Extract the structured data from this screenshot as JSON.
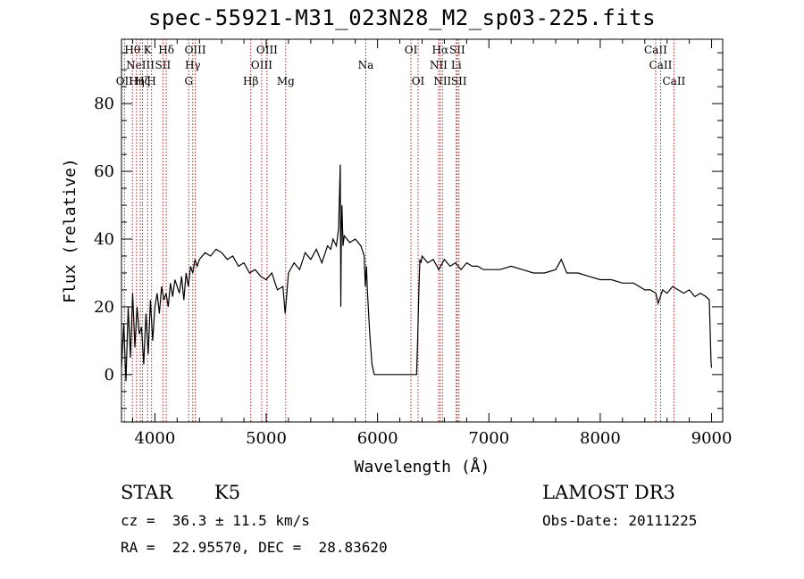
{
  "title": "spec-55921-M31_023N28_M2_sp03-225.fits",
  "info": {
    "class": "STAR",
    "subclass": "K5",
    "redshift_line": "cz =  36.3 ± 11.5 km/s",
    "coords": "RA =  22.95570, DEC =  28.83620",
    "survey": "LAMOST DR3",
    "obs_date": "Obs-Date: 20111225"
  },
  "colors": {
    "spectrum": "#000000",
    "line_marker": "#b22222",
    "axis": "#000000"
  },
  "chart_data": {
    "type": "line",
    "xlabel": "Wavelength (Å)",
    "ylabel": "Flux (relative)",
    "xlim": [
      3700,
      9100
    ],
    "ylim": [
      -14,
      99
    ],
    "xticks": [
      4000,
      5000,
      6000,
      7000,
      8000,
      9000
    ],
    "xtick_labels": [
      "4000",
      "5000",
      "6000",
      "7000",
      "8000",
      "9000"
    ],
    "yticks": [
      0,
      20,
      40,
      60,
      80
    ],
    "ytick_labels": [
      "0",
      "20",
      "40",
      "60",
      "80"
    ],
    "spectral_lines": [
      {
        "wave": 3727,
        "row": 2,
        "text": "OII"
      },
      {
        "wave": 3798,
        "row": 0,
        "text": "Hθ"
      },
      {
        "wave": 3835,
        "row": 2,
        "text": "Hη"
      },
      {
        "wave": 3869,
        "row": 1,
        "text": "NeIII"
      },
      {
        "wave": 3889,
        "row": 2,
        "text": "Hζ"
      },
      {
        "wave": 3934,
        "row": 0,
        "text": "K"
      },
      {
        "wave": 3970,
        "row": 2,
        "text": "H"
      },
      {
        "wave": 4072,
        "row": 1,
        "text": "SII"
      },
      {
        "wave": 4102,
        "row": 0,
        "text": "Hδ"
      },
      {
        "wave": 4304,
        "row": 2,
        "text": "G"
      },
      {
        "wave": 4340,
        "row": 1,
        "text": "Hγ"
      },
      {
        "wave": 4363,
        "row": 0,
        "text": "OIII"
      },
      {
        "wave": 4861,
        "row": 2,
        "text": "Hβ"
      },
      {
        "wave": 4959,
        "row": 1,
        "text": "OIII"
      },
      {
        "wave": 5007,
        "row": 0,
        "text": "OIII"
      },
      {
        "wave": 5175,
        "row": 2,
        "text": "Mg"
      },
      {
        "wave": 5894,
        "row": 1,
        "text": "Na"
      },
      {
        "wave": 6300,
        "row": 0,
        "text": "OI"
      },
      {
        "wave": 6364,
        "row": 2,
        "text": "OI"
      },
      {
        "wave": 6548,
        "row": 1,
        "text": "NII"
      },
      {
        "wave": 6563,
        "row": 0,
        "text": "Hα"
      },
      {
        "wave": 6583,
        "row": 2,
        "text": "NII"
      },
      {
        "wave": 6707,
        "row": 1,
        "text": "Li"
      },
      {
        "wave": 6716,
        "row": 0,
        "text": "SII"
      },
      {
        "wave": 6731,
        "row": 2,
        "text": "SII"
      },
      {
        "wave": 8498,
        "row": 0,
        "text": "CaII"
      },
      {
        "wave": 8542,
        "row": 1,
        "text": "CaII"
      },
      {
        "wave": 8662,
        "row": 2,
        "text": "CaII"
      }
    ],
    "series": [
      {
        "name": "flux",
        "x": [
          3700,
          3720,
          3740,
          3760,
          3780,
          3800,
          3820,
          3840,
          3860,
          3880,
          3900,
          3920,
          3940,
          3960,
          3980,
          4000,
          4020,
          4040,
          4060,
          4080,
          4100,
          4120,
          4140,
          4160,
          4180,
          4200,
          4220,
          4240,
          4260,
          4280,
          4300,
          4320,
          4340,
          4360,
          4380,
          4400,
          4450,
          4500,
          4550,
          4600,
          4650,
          4700,
          4750,
          4800,
          4850,
          4900,
          4950,
          5000,
          5050,
          5100,
          5150,
          5170,
          5180,
          5200,
          5250,
          5300,
          5350,
          5400,
          5450,
          5500,
          5550,
          5580,
          5600,
          5630,
          5650,
          5665,
          5670,
          5675,
          5680,
          5690,
          5700,
          5750,
          5800,
          5850,
          5880,
          5890,
          5900,
          5910,
          5930,
          5950,
          5970,
          5980,
          6000,
          6100,
          6200,
          6300,
          6350,
          6360,
          6370,
          6380,
          6390,
          6400,
          6450,
          6500,
          6550,
          6600,
          6650,
          6700,
          6750,
          6800,
          6850,
          6900,
          6950,
          7000,
          7100,
          7200,
          7300,
          7400,
          7500,
          7600,
          7650,
          7700,
          7800,
          7900,
          8000,
          8100,
          8200,
          8300,
          8400,
          8450,
          8500,
          8520,
          8540,
          8560,
          8600,
          8650,
          8700,
          8750,
          8800,
          8850,
          8900,
          8950,
          8980,
          8995,
          9000
        ],
        "values": [
          2,
          15,
          -2,
          20,
          5,
          24,
          8,
          20,
          12,
          14,
          3,
          18,
          6,
          22,
          10,
          20,
          24,
          18,
          26,
          22,
          24,
          20,
          27,
          23,
          28,
          26,
          24,
          29,
          22,
          30,
          26,
          32,
          30,
          34,
          32,
          34,
          36,
          35,
          37,
          36,
          34,
          35,
          32,
          33,
          30,
          31,
          29,
          28,
          30,
          25,
          26,
          18,
          22,
          30,
          33,
          31,
          36,
          34,
          37,
          33,
          38,
          37,
          40,
          38,
          43,
          62,
          20,
          42,
          50,
          38,
          41,
          39,
          40,
          38,
          35,
          26,
          32,
          24,
          12,
          3,
          0,
          0,
          0,
          0,
          0,
          0,
          0,
          10,
          24,
          34,
          33,
          35,
          33,
          34,
          31,
          34,
          32,
          33,
          31,
          33,
          32,
          32,
          31,
          31,
          31,
          32,
          31,
          30,
          30,
          31,
          34,
          30,
          30,
          29,
          28,
          28,
          27,
          27,
          25,
          25,
          24,
          21,
          23,
          25,
          24,
          26,
          25,
          24,
          25,
          23,
          24,
          23,
          22,
          4,
          2
        ]
      }
    ]
  }
}
